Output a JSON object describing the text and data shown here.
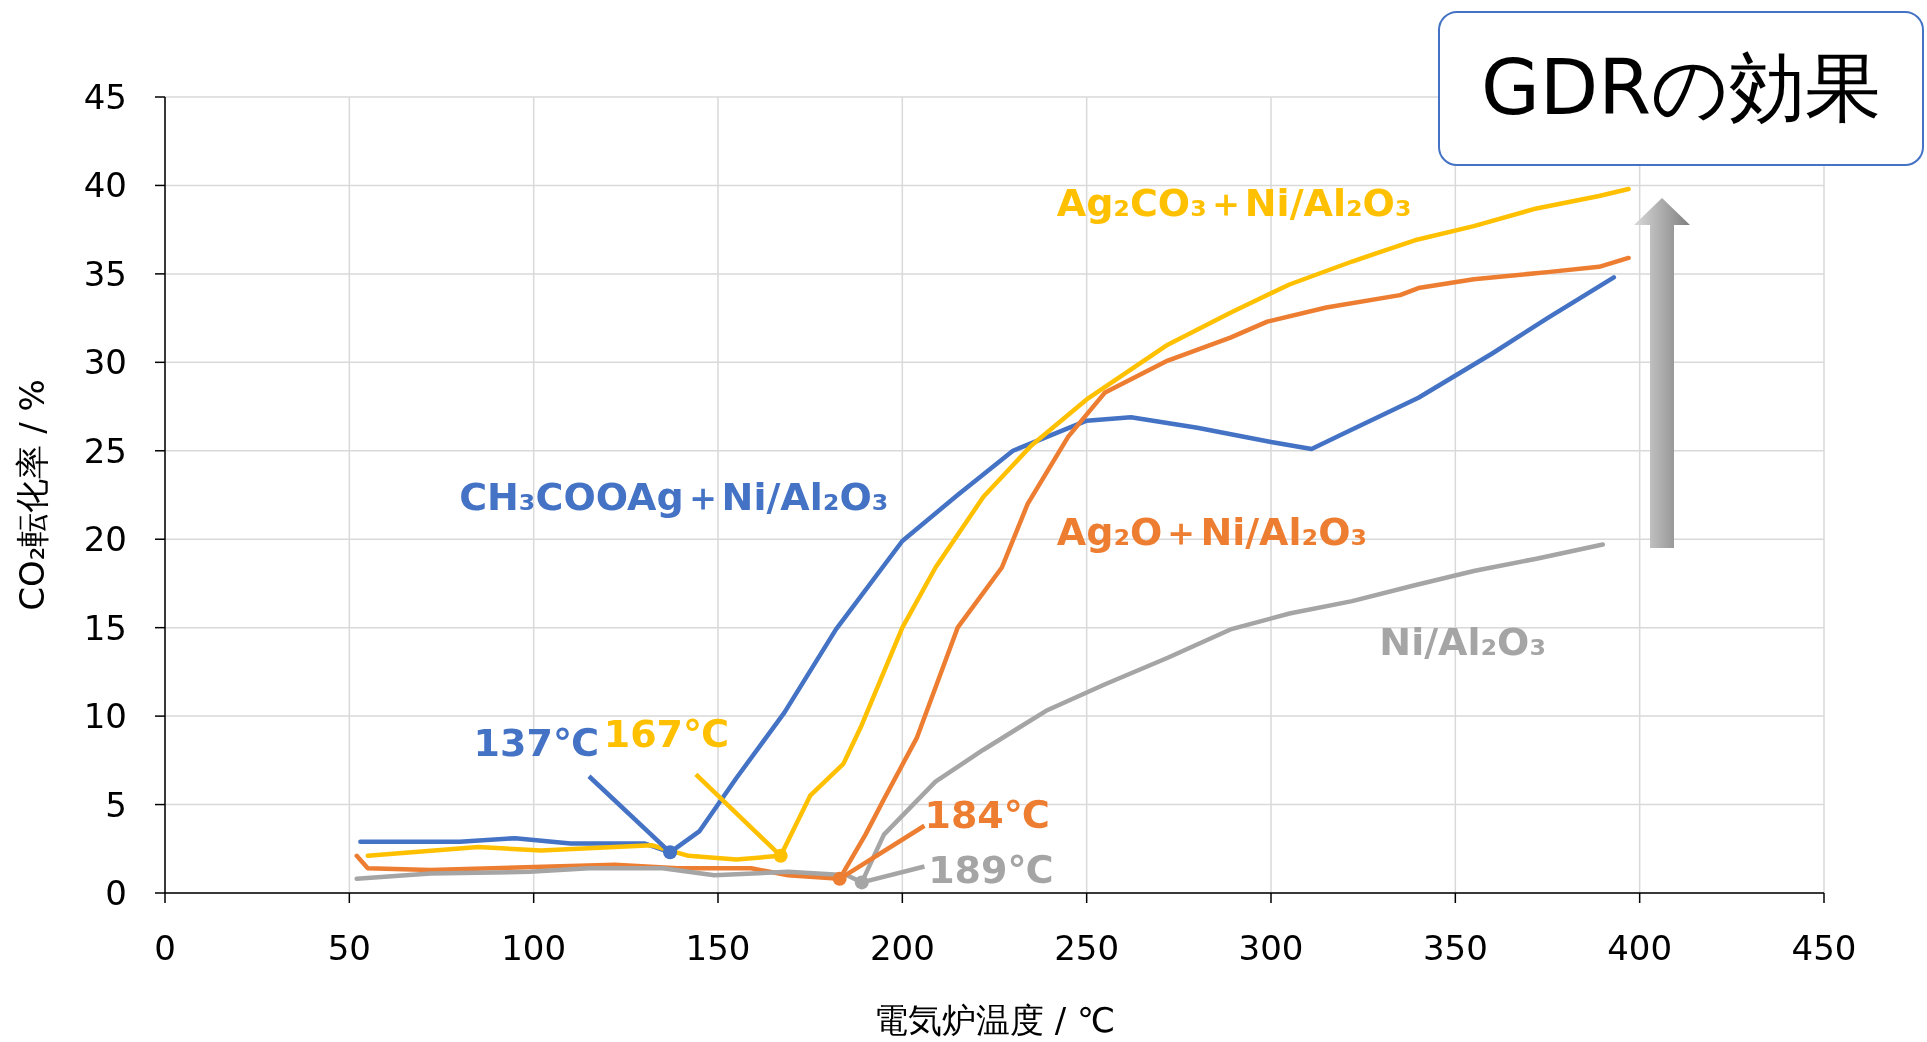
{
  "chart_data": {
    "type": "line",
    "xlabel": "電気炉温度 / ℃",
    "ylabel": "CO₂転化率 / %",
    "xlim": [
      0,
      450
    ],
    "xticks": [
      0,
      50,
      100,
      150,
      200,
      250,
      300,
      350,
      400,
      450
    ],
    "ylim": [
      0,
      45
    ],
    "yticks": [
      0,
      5,
      10,
      15,
      20,
      25,
      30,
      35,
      40,
      45
    ],
    "grid": true,
    "series": [
      {
        "name": "CH₃COOAg＋Ni/Al₂O₃",
        "color": "#4472c4",
        "x": [
          53,
          80,
          95,
          110,
          130,
          137,
          145,
          155,
          168,
          182,
          200,
          215,
          230,
          250,
          262,
          280,
          300,
          311,
          320,
          340,
          360,
          375,
          393
        ],
        "values": [
          2.9,
          2.9,
          3.1,
          2.8,
          2.8,
          2.3,
          3.5,
          6.5,
          10.2,
          14.9,
          19.9,
          22.5,
          25,
          26.7,
          26.9,
          26.3,
          25.5,
          25.1,
          26,
          28,
          30.5,
          32.5,
          34.8
        ]
      },
      {
        "name": "Ag₂CO₃＋Ni/Al₂O₃",
        "color": "#ffc000",
        "x": [
          55,
          85,
          102,
          122,
          132,
          142,
          155,
          167,
          175,
          184,
          189,
          200,
          209,
          222,
          235,
          250,
          272,
          289,
          305,
          322,
          339,
          355,
          372,
          389,
          397
        ],
        "values": [
          2.1,
          2.6,
          2.4,
          2.6,
          2.7,
          2.1,
          1.9,
          2.1,
          5.5,
          7.3,
          9.5,
          15,
          18.4,
          22.4,
          25.3,
          27.9,
          31,
          32.8,
          34.4,
          35.7,
          36.9,
          37.7,
          38.7,
          39.4,
          39.8
        ]
      },
      {
        "name": "Ag₂O＋Ni/Al₂O₃",
        "color": "#ed7d31",
        "x": [
          52,
          55,
          72,
          105,
          122,
          139,
          159,
          169,
          183,
          190,
          195,
          204,
          215,
          227,
          234,
          245,
          255,
          272,
          289,
          299,
          315,
          335,
          340,
          355,
          375,
          389,
          397
        ],
        "values": [
          2.1,
          1.4,
          1.3,
          1.5,
          1.6,
          1.4,
          1.4,
          1.0,
          0.8,
          3.3,
          5.3,
          8.8,
          15,
          18.4,
          22,
          25.8,
          28.3,
          30.1,
          31.4,
          32.3,
          33.1,
          33.8,
          34.2,
          34.7,
          35.1,
          35.4,
          35.9
        ]
      },
      {
        "name": "Ni/Al₂O₃",
        "color": "#a5a5a5",
        "x": [
          52,
          72,
          99,
          115,
          135,
          149,
          169,
          185,
          189,
          195,
          209,
          222,
          239,
          255,
          272,
          289,
          305,
          322,
          339,
          355,
          372,
          390
        ],
        "values": [
          0.8,
          1.1,
          1.2,
          1.4,
          1.4,
          1.0,
          1.2,
          1.0,
          0.6,
          3.3,
          6.3,
          8.1,
          10.3,
          11.8,
          13.3,
          14.9,
          15.8,
          16.5,
          17.4,
          18.2,
          18.9,
          19.7
        ]
      }
    ],
    "annotations": [
      {
        "text": "137℃",
        "x": 137,
        "y": 2.3
      },
      {
        "text": "167℃",
        "x": 167,
        "y": 2.1
      },
      {
        "text": "184℃",
        "x": 183,
        "y": 0.8
      },
      {
        "text": "189℃",
        "x": 189,
        "y": 0.6
      },
      "GDRの効果"
    ]
  }
}
